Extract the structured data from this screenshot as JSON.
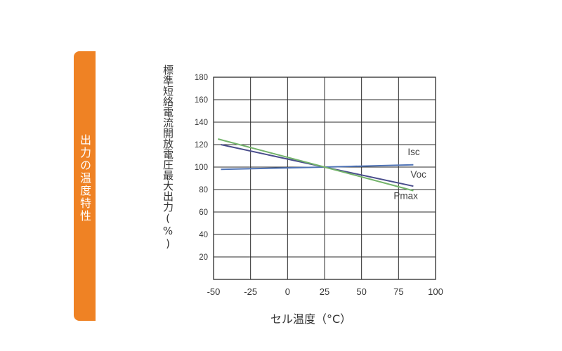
{
  "side_tab": {
    "label": "出力の温度特性",
    "color": "#ef8224"
  },
  "chart_data": {
    "type": "line",
    "xlabel": "セル温度（°C）",
    "ylabel": "標準短絡電流開放電圧最大出力(%)",
    "xlim": [
      -50,
      100
    ],
    "ylim": [
      0,
      180
    ],
    "xticks": [
      -50,
      -25,
      0,
      25,
      50,
      75,
      100
    ],
    "yticks": [
      20,
      40,
      60,
      80,
      100,
      120,
      140,
      160,
      180
    ],
    "grid": true,
    "series": [
      {
        "name": "Isc",
        "color": "#4f73b5",
        "x": [
          -45,
          25,
          85
        ],
        "y": [
          98,
          100,
          102
        ]
      },
      {
        "name": "Voc",
        "color": "#4a4e8c",
        "x": [
          -45,
          25,
          85
        ],
        "y": [
          120,
          100,
          83
        ]
      },
      {
        "name": "Pmax",
        "color": "#73b36a",
        "x": [
          -47,
          25,
          85
        ],
        "y": [
          125,
          100,
          79
        ]
      }
    ]
  }
}
